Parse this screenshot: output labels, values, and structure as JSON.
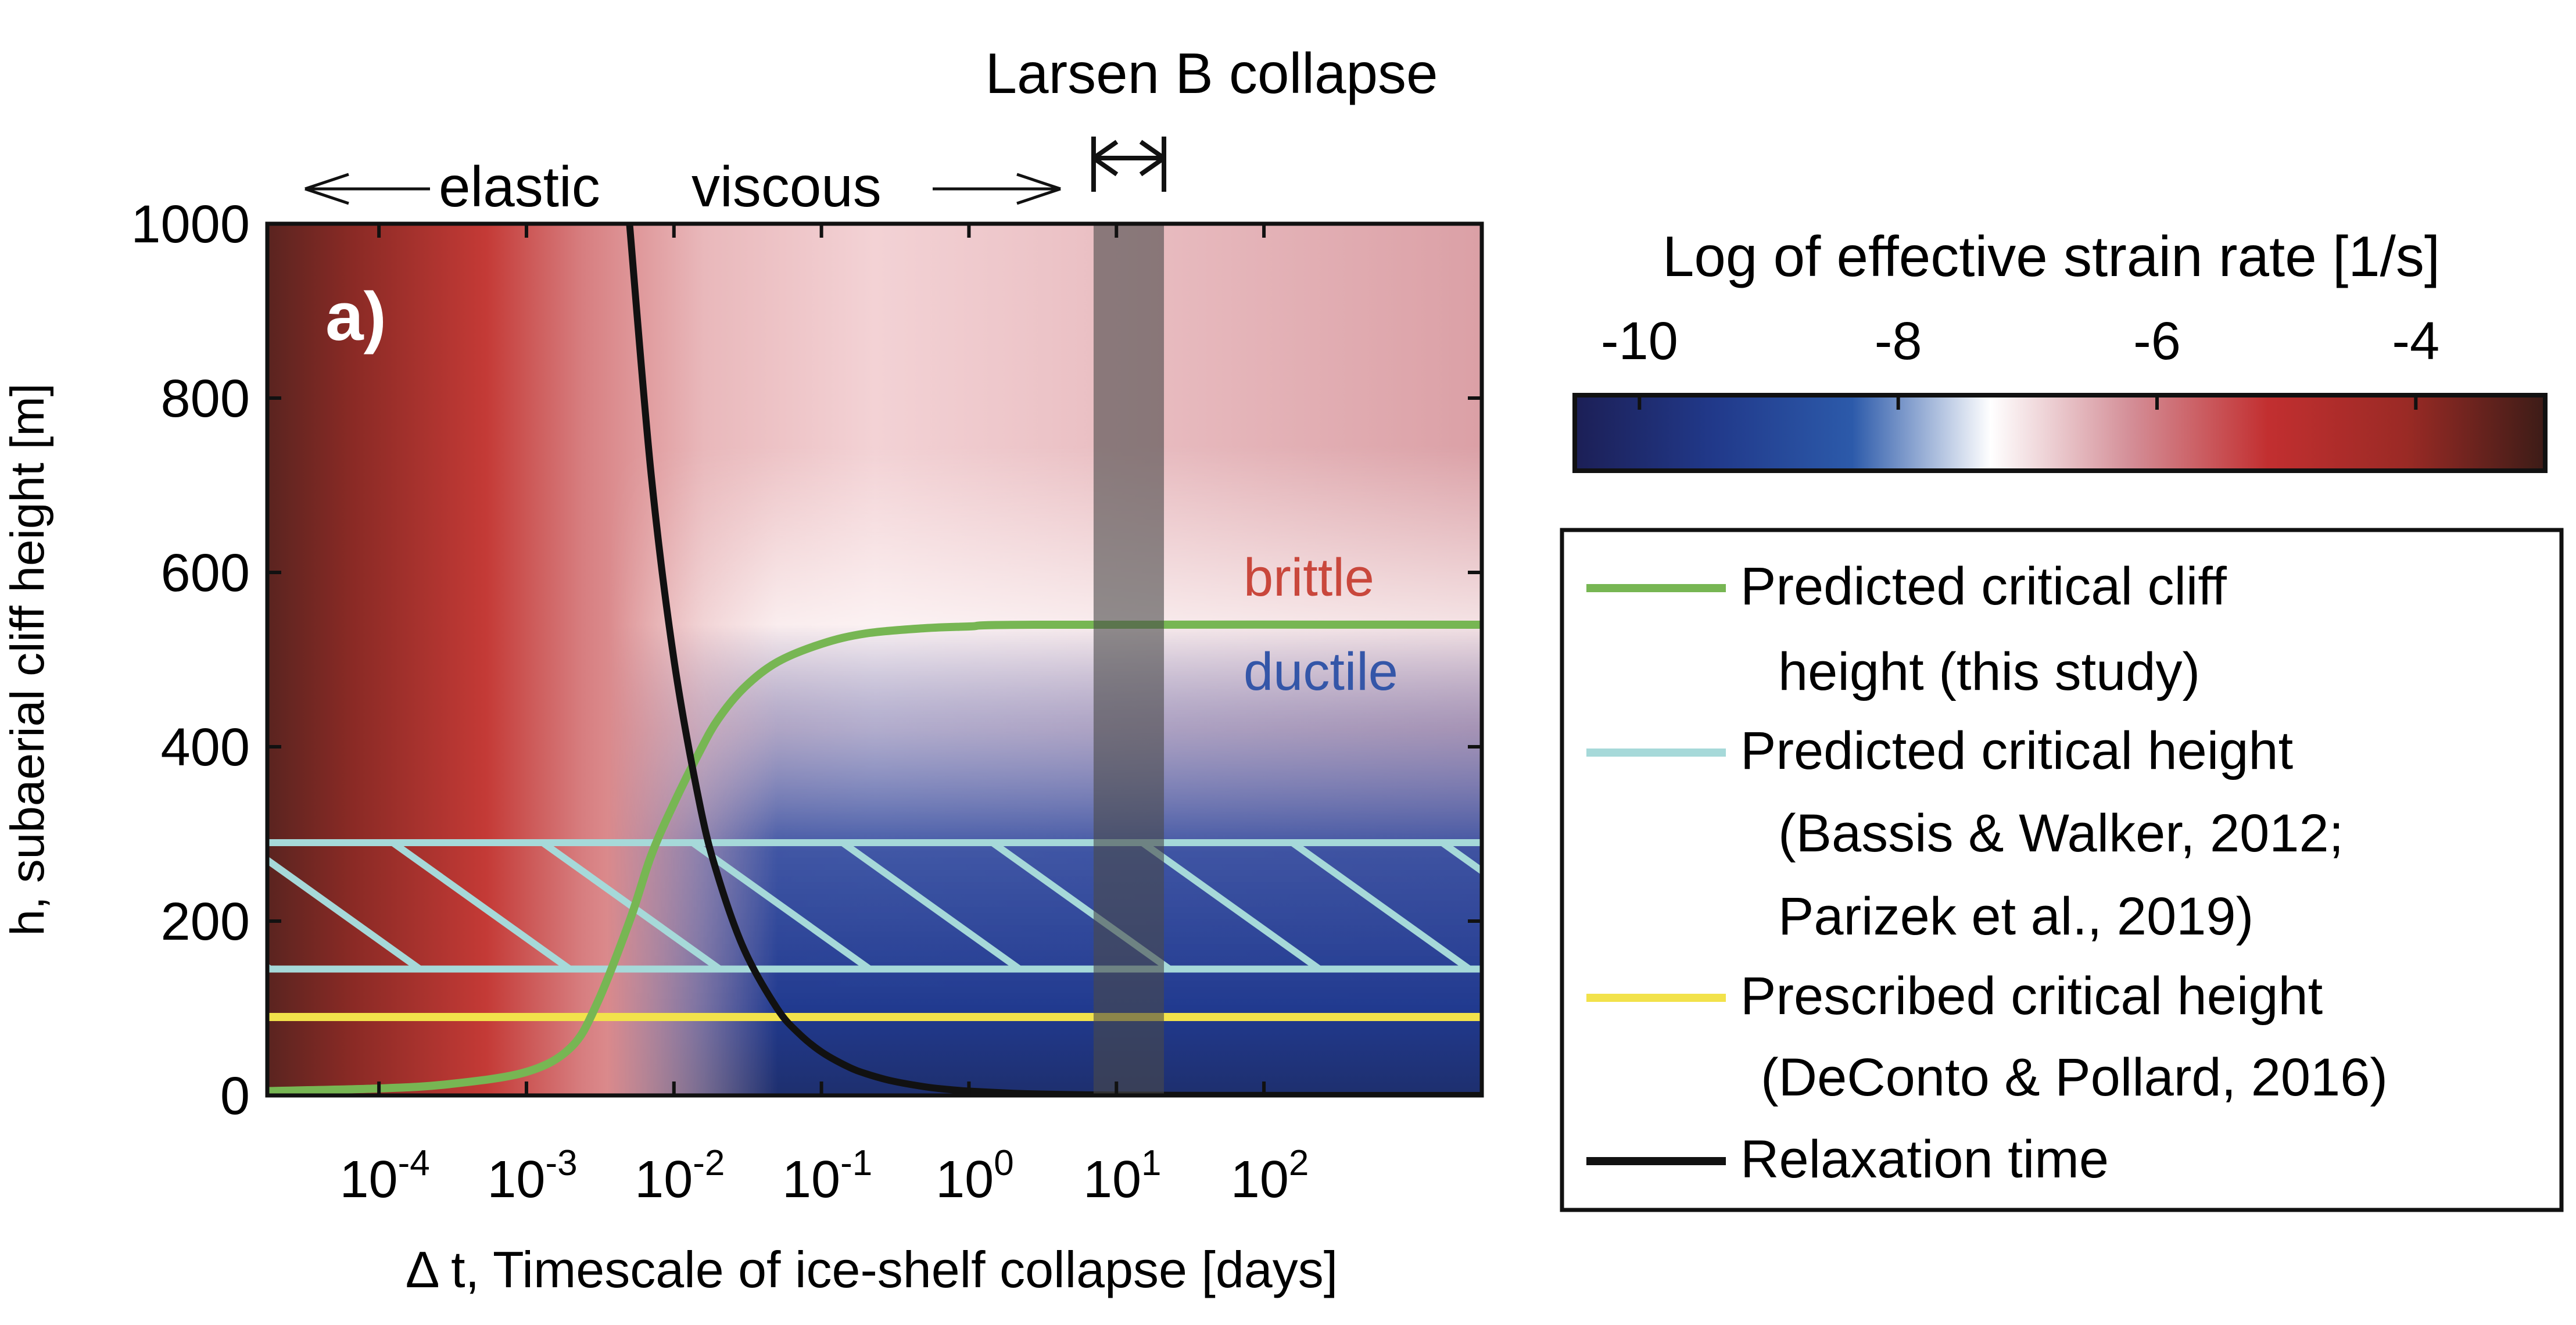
{
  "chart_data": {
    "type": "heatmap",
    "panel_label": "a)",
    "xlabel_symbol": "Δ",
    "xlabel_text": " t, Timescale of ice-shelf collapse [days]",
    "ylabel": "h, subaerial cliff height [m]",
    "x_scale": "log",
    "xlim_days": [
      1.75e-05,
      3000
    ],
    "ylim": [
      0,
      1000
    ],
    "x_ticks": [
      {
        "value": 0.0001,
        "base": "10",
        "exp": "-4"
      },
      {
        "value": 0.001,
        "base": "10",
        "exp": "-3"
      },
      {
        "value": 0.01,
        "base": "10",
        "exp": "-2"
      },
      {
        "value": 0.1,
        "base": "10",
        "exp": "-1"
      },
      {
        "value": 1,
        "base": "10",
        "exp": "0"
      },
      {
        "value": 10,
        "base": "10",
        "exp": "1"
      },
      {
        "value": 100,
        "base": "10",
        "exp": "2"
      }
    ],
    "y_ticks": [
      0,
      200,
      400,
      600,
      800,
      1000
    ],
    "region_labels": {
      "brittle": "brittle",
      "ductile": "ductile"
    },
    "top_annotations": {
      "elastic": "elastic",
      "viscous": "viscous",
      "larsen": "Larsen B collapse"
    },
    "larsen_band_days": [
      7,
      21
    ],
    "colorbar": {
      "title": "Log of effective strain rate [1/s]",
      "range": [
        -10.5,
        -3
      ],
      "ticks": [
        -10,
        -8,
        -6,
        -4
      ],
      "tick_labels": [
        "-10",
        "-8",
        "-6",
        "-4"
      ],
      "colors": [
        "#1c1f56",
        "#21398a",
        "#2c5aaa",
        "#ffffff",
        "#d48f98",
        "#c22f30",
        "#9a2a25",
        "#3c1c17"
      ]
    },
    "series": [
      {
        "name": "Predicted critical cliff height (this study)",
        "legend_lines": [
          "Predicted critical cliff",
          "height (this study)"
        ],
        "color": "#77b653",
        "x": [
          1.75e-05,
          0.0001,
          0.0003,
          0.001,
          0.002,
          0.003,
          0.005,
          0.007,
          0.01,
          0.015,
          0.02,
          0.03,
          0.05,
          0.1,
          0.2,
          0.5,
          1,
          3,
          3000
        ],
        "y": [
          5,
          8,
          13,
          27,
          55,
          105,
          200,
          275,
          335,
          395,
          432,
          468,
          497,
          518,
          530,
          536,
          538,
          540,
          540
        ]
      },
      {
        "name": "Predicted critical height (Bassis & Walker, 2012; Parizek et al., 2019)",
        "legend_lines": [
          "Predicted critical height",
          "(Bassis & Walker, 2012;",
          "Parizek et al., 2019)"
        ],
        "color": "#a6d9d9",
        "band": [
          145,
          290
        ]
      },
      {
        "name": "Prescribed critical height (DeConto & Pollard, 2016)",
        "legend_lines": [
          "Prescribed critical height",
          "(DeConto & Pollard, 2016)"
        ],
        "color": "#f2e24b",
        "y_const": 90
      },
      {
        "name": "Relaxation time",
        "legend_lines": [
          "Relaxation time"
        ],
        "color": "#111111",
        "x": [
          0.005,
          0.007,
          0.01,
          0.015,
          0.02,
          0.03,
          0.05,
          0.07,
          0.1,
          0.15,
          0.2,
          0.3,
          0.5,
          0.7,
          1,
          2,
          3,
          5,
          7,
          10,
          20,
          50,
          100,
          3000
        ],
        "y": [
          1000,
          713,
          500,
          333,
          250,
          167,
          100,
          71.4,
          50,
          33.3,
          25,
          16.7,
          10,
          7.1,
          5,
          2.5,
          1.7,
          1,
          0.7,
          0.5,
          0.25,
          0.1,
          0.05,
          0
        ]
      }
    ]
  }
}
